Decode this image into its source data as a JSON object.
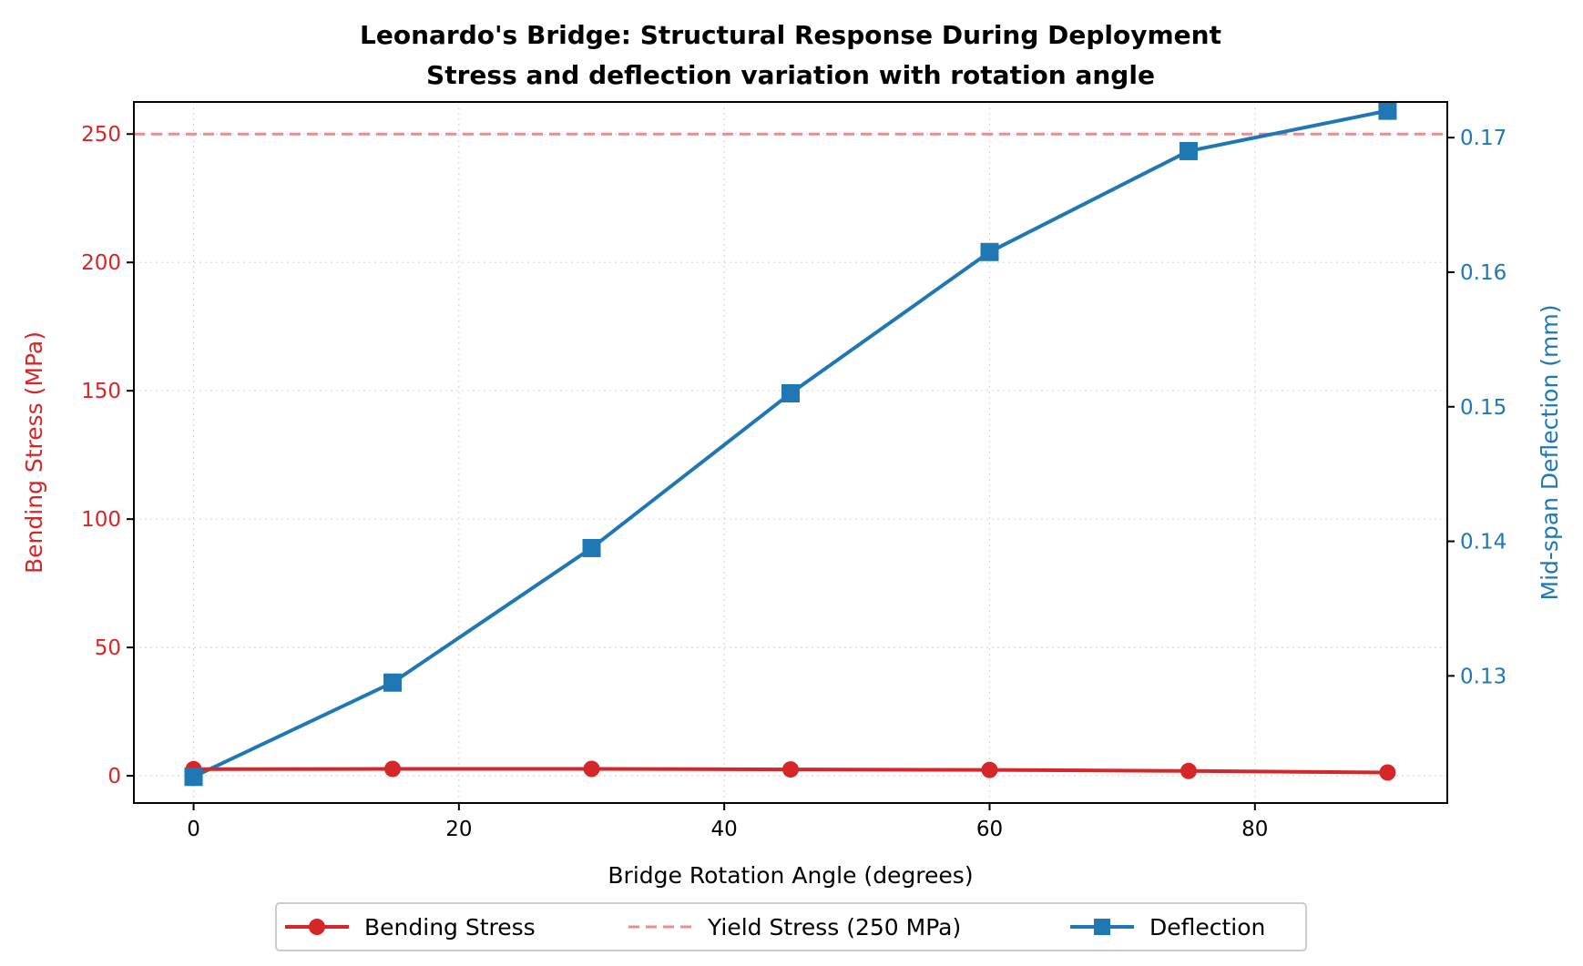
{
  "chart_data": {
    "type": "line",
    "title": "Leonardo's Bridge: Structural Response During Deployment",
    "subtitle": "Stress and deflection variation with rotation angle",
    "xlabel": "Bridge Rotation Angle (degrees)",
    "ylabel_left": "Bending Stress (MPa)",
    "ylabel_right": "Mid-span Deflection (mm)",
    "x": [
      0,
      15,
      30,
      45,
      60,
      75,
      90
    ],
    "xlim": [
      -4.5,
      94.5
    ],
    "ylim_left": [
      -10.6,
      262.5
    ],
    "ylim_right": [
      0.12055,
      0.17265
    ],
    "x_ticks": [
      0,
      20,
      40,
      60,
      80
    ],
    "y_left_ticks": [
      0,
      50,
      100,
      150,
      200,
      250
    ],
    "y_right_ticks": [
      0.13,
      0.14,
      0.15,
      0.16,
      0.17
    ],
    "y_right_tick_labels": [
      "0.13",
      "0.14",
      "0.15",
      "0.16",
      "0.17"
    ],
    "grid": true,
    "legend_position": "bottom-center",
    "series": [
      {
        "name": "Bending Stress",
        "axis": "left",
        "marker": "circle",
        "color": "#d62728",
        "values": [
          2.6,
          2.7,
          2.7,
          2.5,
          2.3,
          1.9,
          1.3
        ]
      },
      {
        "name": "Yield Stress (250 MPa)",
        "axis": "left",
        "style": "dashed",
        "color": "#e88e8f",
        "y_constant": 250
      },
      {
        "name": "Deflection",
        "axis": "right",
        "marker": "square",
        "color": "#1f77b4",
        "values": [
          0.1225,
          0.1295,
          0.1395,
          0.151,
          0.1615,
          0.169,
          0.172
        ]
      }
    ],
    "colors": {
      "left_axis": "#d62728",
      "right_axis": "#1f77b4",
      "frame": "#000000",
      "grid": "#d9d9d9"
    }
  }
}
